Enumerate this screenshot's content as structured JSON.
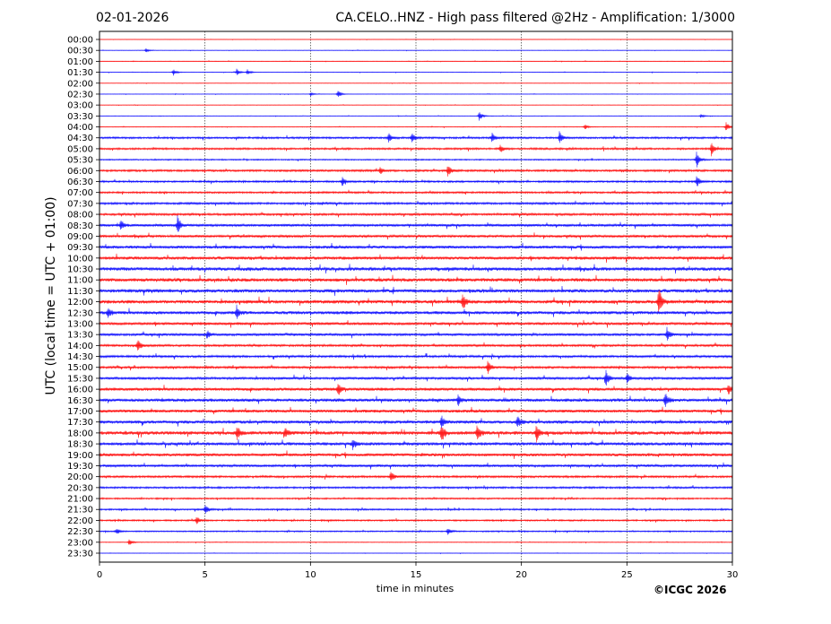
{
  "header": {
    "date": "02-01-2026",
    "title": "CA.CELO..HNZ - High pass filtered @2Hz - Amplification: 1/3000"
  },
  "footer": {
    "copyright": "©ICGC 2026"
  },
  "chart_data": {
    "type": "line",
    "title": "CA.CELO..HNZ - High pass filtered @2Hz - Amplification: 1/3000",
    "xlabel": "time in minutes",
    "ylabel": "UTC (local time = UTC + 01:00)",
    "xlim": [
      0,
      30
    ],
    "x_ticks": [
      "0",
      "5",
      "10",
      "15",
      "20",
      "25",
      "30"
    ],
    "grid": "vertical dotted at every 5 minutes",
    "series_colors": [
      "#ff0000",
      "#0000ff"
    ],
    "row_labels": [
      "00:00",
      "00:30",
      "01:00",
      "01:30",
      "02:00",
      "02:30",
      "03:00",
      "03:30",
      "04:00",
      "04:30",
      "05:00",
      "05:30",
      "06:00",
      "06:30",
      "07:00",
      "07:30",
      "08:00",
      "08:30",
      "09:00",
      "09:30",
      "10:00",
      "10:30",
      "11:00",
      "11:30",
      "12:00",
      "12:30",
      "13:00",
      "13:30",
      "14:00",
      "14:30",
      "15:00",
      "15:30",
      "16:00",
      "16:30",
      "17:00",
      "17:30",
      "18:00",
      "18:30",
      "19:00",
      "19:30",
      "20:00",
      "20:30",
      "21:00",
      "21:30",
      "22:00",
      "22:30",
      "23:00",
      "23:30"
    ],
    "noise_level": [
      0.03,
      0.04,
      0.05,
      0.05,
      0.04,
      0.04,
      0.04,
      0.04,
      0.06,
      0.18,
      0.18,
      0.12,
      0.2,
      0.18,
      0.18,
      0.2,
      0.22,
      0.25,
      0.25,
      0.3,
      0.32,
      0.35,
      0.35,
      0.35,
      0.35,
      0.32,
      0.28,
      0.25,
      0.22,
      0.22,
      0.22,
      0.25,
      0.3,
      0.32,
      0.3,
      0.32,
      0.35,
      0.32,
      0.3,
      0.25,
      0.2,
      0.18,
      0.15,
      0.15,
      0.15,
      0.12,
      0.06,
      0.04
    ],
    "events": [
      {
        "row": 1,
        "minute": 2.2,
        "amp": 0.2
      },
      {
        "row": 3,
        "minute": 3.5,
        "amp": 0.35
      },
      {
        "row": 3,
        "minute": 6.5,
        "amp": 0.35
      },
      {
        "row": 3,
        "minute": 7.0,
        "amp": 0.3
      },
      {
        "row": 5,
        "minute": 10.0,
        "amp": 0.2
      },
      {
        "row": 5,
        "minute": 11.3,
        "amp": 0.45
      },
      {
        "row": 7,
        "minute": 18.0,
        "amp": 0.55
      },
      {
        "row": 7,
        "minute": 28.5,
        "amp": 0.2
      },
      {
        "row": 8,
        "minute": 23.0,
        "amp": 0.3
      },
      {
        "row": 8,
        "minute": 29.7,
        "amp": 0.5
      },
      {
        "row": 9,
        "minute": 13.7,
        "amp": 0.5
      },
      {
        "row": 9,
        "minute": 14.8,
        "amp": 0.55
      },
      {
        "row": 9,
        "minute": 18.6,
        "amp": 0.55
      },
      {
        "row": 9,
        "minute": 21.8,
        "amp": 0.6
      },
      {
        "row": 10,
        "minute": 29.0,
        "amp": 0.7
      },
      {
        "row": 10,
        "minute": 19.0,
        "amp": 0.4
      },
      {
        "row": 11,
        "minute": 28.3,
        "amp": 0.9
      },
      {
        "row": 12,
        "minute": 16.5,
        "amp": 0.65
      },
      {
        "row": 12,
        "minute": 13.3,
        "amp": 0.4
      },
      {
        "row": 13,
        "minute": 11.5,
        "amp": 0.45
      },
      {
        "row": 13,
        "minute": 28.3,
        "amp": 0.6
      },
      {
        "row": 17,
        "minute": 1.0,
        "amp": 0.6
      },
      {
        "row": 17,
        "minute": 3.7,
        "amp": 1.0
      },
      {
        "row": 24,
        "minute": 17.2,
        "amp": 0.8
      },
      {
        "row": 24,
        "minute": 26.5,
        "amp": 1.6
      },
      {
        "row": 25,
        "minute": 6.5,
        "amp": 0.7
      },
      {
        "row": 25,
        "minute": 0.4,
        "amp": 0.5
      },
      {
        "row": 27,
        "minute": 26.9,
        "amp": 0.7
      },
      {
        "row": 27,
        "minute": 5.1,
        "amp": 0.4
      },
      {
        "row": 28,
        "minute": 1.8,
        "amp": 0.7
      },
      {
        "row": 30,
        "minute": 18.4,
        "amp": 0.8
      },
      {
        "row": 31,
        "minute": 24.0,
        "amp": 0.8
      },
      {
        "row": 31,
        "minute": 25.0,
        "amp": 0.5
      },
      {
        "row": 32,
        "minute": 11.3,
        "amp": 0.7
      },
      {
        "row": 32,
        "minute": 29.8,
        "amp": 0.5
      },
      {
        "row": 33,
        "minute": 26.8,
        "amp": 0.8
      },
      {
        "row": 33,
        "minute": 17.0,
        "amp": 0.5
      },
      {
        "row": 35,
        "minute": 19.8,
        "amp": 0.7
      },
      {
        "row": 35,
        "minute": 16.2,
        "amp": 0.6
      },
      {
        "row": 36,
        "minute": 16.2,
        "amp": 1.0
      },
      {
        "row": 36,
        "minute": 17.9,
        "amp": 0.9
      },
      {
        "row": 36,
        "minute": 20.7,
        "amp": 0.9
      },
      {
        "row": 36,
        "minute": 6.5,
        "amp": 0.7
      },
      {
        "row": 36,
        "minute": 8.8,
        "amp": 0.5
      },
      {
        "row": 37,
        "minute": 12.0,
        "amp": 0.5
      },
      {
        "row": 40,
        "minute": 13.8,
        "amp": 0.6
      },
      {
        "row": 43,
        "minute": 5.0,
        "amp": 0.5
      },
      {
        "row": 44,
        "minute": 4.6,
        "amp": 0.4
      },
      {
        "row": 45,
        "minute": 0.8,
        "amp": 0.35
      },
      {
        "row": 45,
        "minute": 16.5,
        "amp": 0.35
      },
      {
        "row": 46,
        "minute": 1.4,
        "amp": 0.35
      }
    ]
  }
}
